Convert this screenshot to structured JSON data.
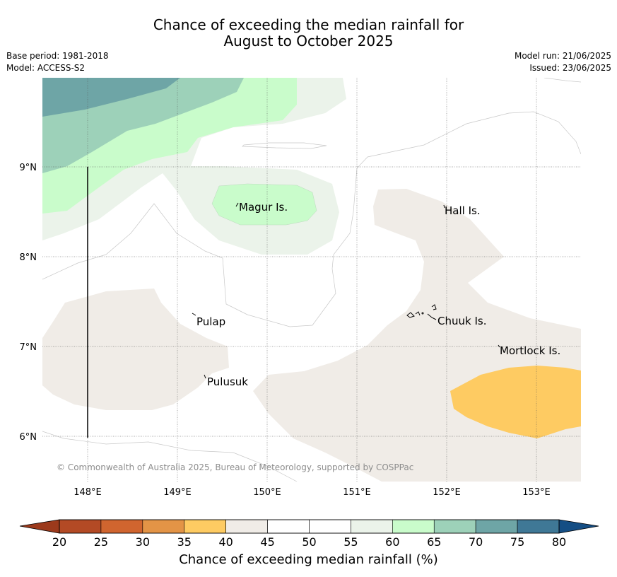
{
  "header": {
    "title_line1": "Chance of exceeding the median rainfall for",
    "title_line2": "August to October 2025",
    "base_period": "Base period: 1981-2018",
    "model": "Model: ACCESS-S2",
    "model_run": "Model run: 21/06/2025",
    "issued": "Issued: 23/06/2025"
  },
  "map": {
    "lat_labels": [
      "9°N",
      "8°N",
      "7°N",
      "6°N"
    ],
    "lon_labels": [
      "148°E",
      "149°E",
      "150°E",
      "151°E",
      "152°E",
      "153°E"
    ],
    "places": [
      "Magur Is.",
      "Hall Is.",
      "Pulap",
      "Chuuk Is.",
      "Mortlock Is.",
      "Pulusuk"
    ],
    "copyright": "© Commonwealth of Australia 2025, Bureau of Meteorology, supported by COSPPac"
  },
  "colorbar": {
    "label": "Chance of exceeding median rainfall (%)",
    "ticks": [
      "20",
      "25",
      "30",
      "35",
      "40",
      "45",
      "50",
      "55",
      "60",
      "65",
      "70",
      "75",
      "80"
    ],
    "colors": [
      "#b34a25",
      "#d0652f",
      "#e39446",
      "#fecb62",
      "#f0ece7",
      "#ffffff",
      "#ffffff",
      "#ebf3ea",
      "#c9fccb",
      "#9dd1b9",
      "#6ea5a6",
      "#3f7896"
    ],
    "under_color": "#9c3a1c",
    "over_color": "#154e84"
  }
}
